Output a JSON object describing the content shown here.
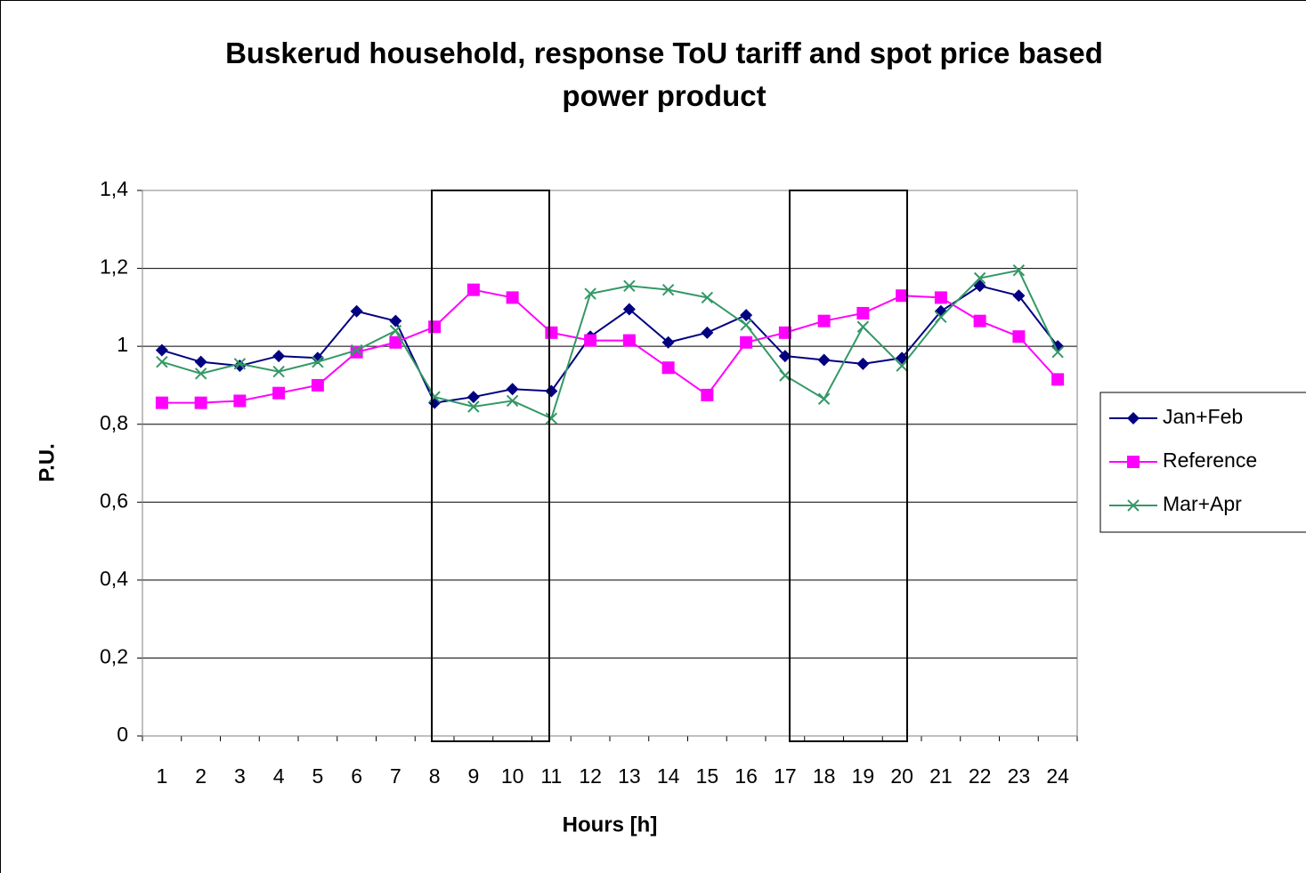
{
  "chart_data": {
    "type": "line",
    "title": "Buskerud household, response ToU tariff and spot price based power product",
    "xlabel": "Hours [h]",
    "ylabel": "P.U.",
    "categories": [
      "1",
      "2",
      "3",
      "4",
      "5",
      "6",
      "7",
      "8",
      "9",
      "10",
      "11",
      "12",
      "13",
      "14",
      "15",
      "16",
      "17",
      "18",
      "19",
      "20",
      "21",
      "22",
      "23",
      "24"
    ],
    "series": [
      {
        "name": "Jan+Feb",
        "color": "#000080",
        "marker": "diamond",
        "values": [
          0.99,
          0.96,
          0.95,
          0.975,
          0.97,
          1.09,
          1.065,
          0.855,
          0.87,
          0.89,
          0.885,
          1.025,
          1.095,
          1.01,
          1.035,
          1.08,
          0.975,
          0.965,
          0.955,
          0.97,
          1.09,
          1.155,
          1.13,
          1.0
        ]
      },
      {
        "name": "Reference",
        "color": "#ff00ff",
        "marker": "square",
        "values": [
          0.855,
          0.855,
          0.86,
          0.88,
          0.9,
          0.985,
          1.01,
          1.05,
          1.145,
          1.125,
          1.035,
          1.015,
          1.015,
          0.945,
          0.875,
          1.01,
          1.035,
          1.065,
          1.085,
          1.13,
          1.125,
          1.065,
          1.025,
          0.915
        ]
      },
      {
        "name": "Mar+Apr",
        "color": "#339966",
        "marker": "x",
        "values": [
          0.96,
          0.93,
          0.955,
          0.935,
          0.96,
          0.99,
          1.04,
          0.87,
          0.845,
          0.86,
          0.815,
          1.135,
          1.155,
          1.145,
          1.125,
          1.055,
          0.925,
          0.865,
          1.05,
          0.95,
          1.075,
          1.175,
          1.195,
          0.985
        ]
      }
    ],
    "ylim": [
      0,
      1.4
    ],
    "yticks": [
      0,
      {
        "value": 0.2,
        "label": "0,2"
      },
      {
        "value": 0.4,
        "label": "0,4"
      },
      {
        "value": 0.6,
        "label": "0,6"
      },
      {
        "value": 0.8,
        "label": "0,8"
      },
      1,
      {
        "value": 1.2,
        "label": "1,2"
      },
      {
        "value": 1.4,
        "label": "1,4"
      }
    ],
    "grid": true,
    "legend": "right"
  }
}
